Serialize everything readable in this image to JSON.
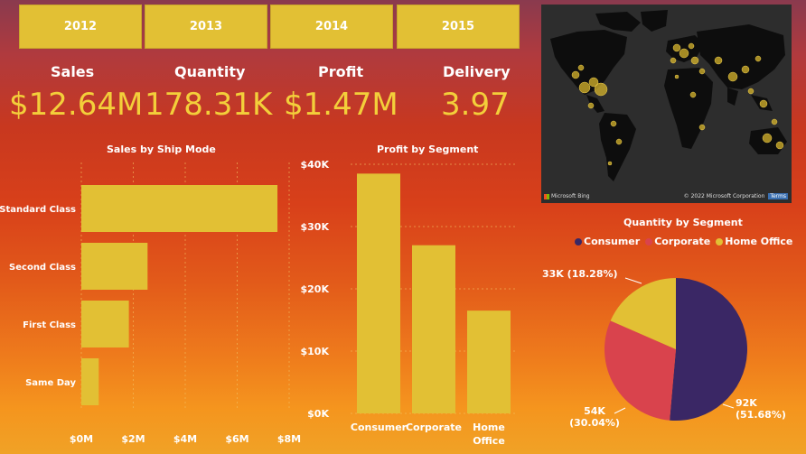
{
  "years": [
    "2012",
    "2013",
    "2014",
    "2015"
  ],
  "kpis": [
    {
      "label": "Sales",
      "value": "$12.64M"
    },
    {
      "label": "Quantity",
      "value": "178.31K"
    },
    {
      "label": "Profit",
      "value": "$1.47M"
    },
    {
      "label": "Delivery",
      "value": "3.97"
    }
  ],
  "map": {
    "attribution": "© 2022 Microsoft Corporation",
    "terms": "Terms",
    "brand": "Microsoft Bing"
  },
  "colors": {
    "accent": "#e2c034",
    "consumer": "#3a2765",
    "corporate": "#d9434d",
    "home_office": "#e2c034"
  },
  "chart_data": [
    {
      "type": "bar",
      "orientation": "horizontal",
      "title": "Sales by Ship Mode",
      "categories": [
        "Standard Class",
        "Second Class",
        "First Class",
        "Same Day"
      ],
      "values": [
        7.55,
        2.55,
        1.83,
        0.67
      ],
      "xlim": [
        0,
        8
      ],
      "xticks": [
        "$0M",
        "$2M",
        "$4M",
        "$6M",
        "$8M"
      ],
      "grid": true
    },
    {
      "type": "bar",
      "title": "Profit by Segment",
      "categories": [
        "Consumer",
        "Corporate",
        "Home Office"
      ],
      "values": [
        38500,
        27000,
        16500
      ],
      "ylim": [
        0,
        40000
      ],
      "yticks": [
        "$0K",
        "$10K",
        "$20K",
        "$30K",
        "$40K"
      ],
      "grid": true
    },
    {
      "type": "pie",
      "title": "Quantity by Segment",
      "legend": [
        "Consumer",
        "Corporate",
        "Home Office"
      ],
      "legend_position": "top",
      "values": [
        92,
        54,
        33
      ],
      "labels": [
        "92K (51.68%)",
        "54K (30.04%)",
        "33K (18.28%)"
      ],
      "percents": [
        51.68,
        30.04,
        18.28
      ]
    }
  ]
}
